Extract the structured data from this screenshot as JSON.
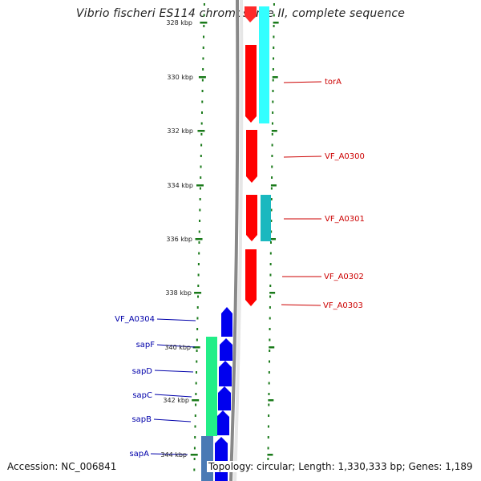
{
  "title": "Vibrio fischeri ES114 chromosome II, complete sequence",
  "footer": {
    "accession": "Accession: NC_006841",
    "stats": "Topology: circular; Length: 1,330,333 bp; Genes: 1,189"
  },
  "colors": {
    "tick": "#1a7a1a",
    "backbone": "#888888",
    "forward_gene": "#ff0000",
    "forward_label": "#cc0000",
    "reverse_gene": "#0000ee",
    "reverse_label": "#0000aa",
    "cyan_track": "#33ffff",
    "teal_track": "#1ab8bf",
    "green_track": "#22ee88",
    "steel_track": "#4a7ab5"
  },
  "ticks": [
    "328 kbp",
    "330 kbp",
    "332 kbp",
    "334 kbp",
    "336 kbp",
    "338 kbp",
    "340 kbp",
    "342 kbp",
    "344 kbp"
  ],
  "forward_labels": [
    "torA",
    "VF_A0300",
    "VF_A0301",
    "VF_A0302",
    "VF_A0303"
  ],
  "reverse_labels": [
    "VF_A0304",
    "sapF",
    "sapD",
    "sapC",
    "sapB",
    "sapA"
  ]
}
